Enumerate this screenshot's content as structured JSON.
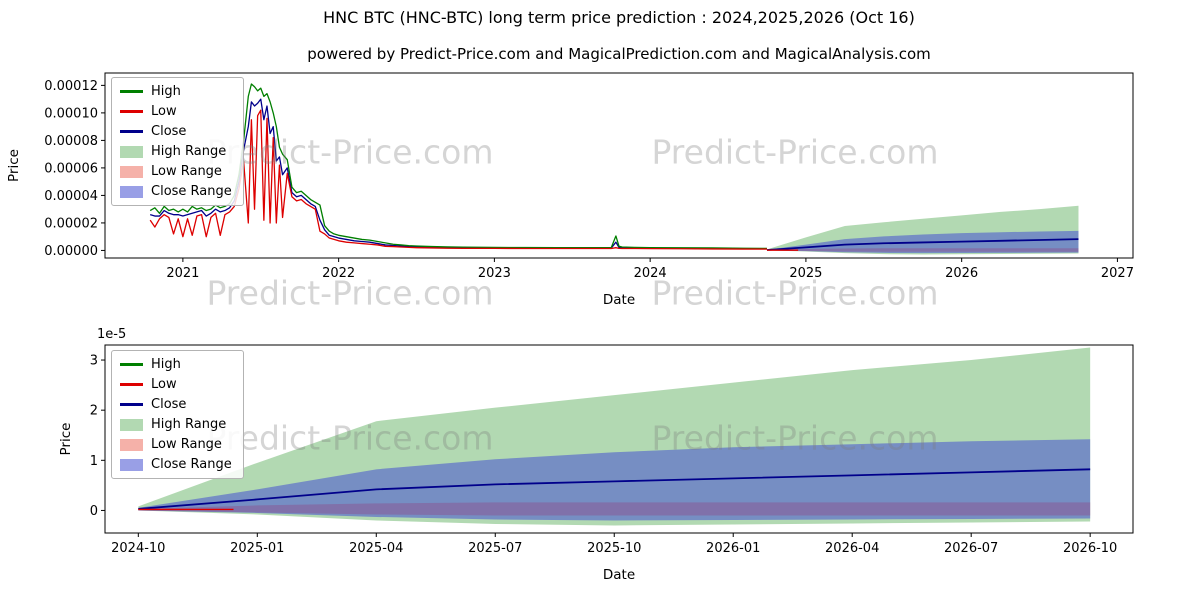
{
  "page": {
    "title": "HNC BTC (HNC-BTC) long term price prediction : 2024,2025,2026 (Oct 16)",
    "subtitle": "powered by Predict-Price.com and MagicalPrediction.com and MagicalAnalysis.com",
    "watermark": "Predict-Price.com"
  },
  "colors": {
    "high": "#007f00",
    "low": "#dd0000",
    "close": "#00008b",
    "high_range": "rgba(0,128,0,0.30)",
    "low_range": "rgba(230,60,40,0.40)",
    "close_range": "rgba(70,80,210,0.55)",
    "frame": "#000000"
  },
  "legend": [
    {
      "label": "High",
      "type": "line",
      "color_key": "high"
    },
    {
      "label": "Low",
      "type": "line",
      "color_key": "low"
    },
    {
      "label": "Close",
      "type": "line",
      "color_key": "close"
    },
    {
      "label": "High Range",
      "type": "patch",
      "color_key": "high_range"
    },
    {
      "label": "Low Range",
      "type": "patch",
      "color_key": "low_range"
    },
    {
      "label": "Close Range",
      "type": "patch",
      "color_key": "close_range"
    }
  ],
  "chart_data": [
    {
      "type": "line",
      "name": "long-term-history-and-forecast",
      "title": "",
      "xlabel": "Date",
      "ylabel": "Price",
      "grid": false,
      "legend_position": "upper left",
      "value_unit": 1e-05,
      "xlim": [
        2020.5,
        2027.1
      ],
      "ylim": [
        -0.55,
        12.9
      ],
      "x_ticks": [
        {
          "v": 2021,
          "label": "2021"
        },
        {
          "v": 2022,
          "label": "2022"
        },
        {
          "v": 2023,
          "label": "2023"
        },
        {
          "v": 2024,
          "label": "2024"
        },
        {
          "v": 2025,
          "label": "2025"
        },
        {
          "v": 2026,
          "label": "2026"
        },
        {
          "v": 2027,
          "label": "2027"
        }
      ],
      "y_ticks": [
        {
          "v": 0,
          "label": "0.00000"
        },
        {
          "v": 2,
          "label": "0.00002"
        },
        {
          "v": 4,
          "label": "0.00004"
        },
        {
          "v": 6,
          "label": "0.00006"
        },
        {
          "v": 8,
          "label": "0.00008"
        },
        {
          "v": 10,
          "label": "0.00010"
        },
        {
          "v": 12,
          "label": "0.00012"
        }
      ],
      "bands": [
        {
          "name": "High Range",
          "color_key": "high_range",
          "x": [
            2024.75,
            2025.0,
            2025.25,
            2025.5,
            2025.75,
            2026.0,
            2026.25,
            2026.5,
            2026.75
          ],
          "upper": [
            0.08,
            0.95,
            1.78,
            2.05,
            2.3,
            2.55,
            2.8,
            3.0,
            3.25
          ],
          "lower": [
            0.0,
            -0.08,
            -0.2,
            -0.27,
            -0.3,
            -0.28,
            -0.26,
            -0.24,
            -0.22
          ]
        },
        {
          "name": "Low Range",
          "color_key": "low_range",
          "x": [
            2024.75,
            2025.0,
            2025.25,
            2025.5,
            2025.75,
            2026.0,
            2026.25,
            2026.5,
            2026.75
          ],
          "upper": [
            0.03,
            0.1,
            0.14,
            0.16,
            0.16,
            0.16,
            0.16,
            0.16,
            0.16
          ],
          "lower": [
            0.0,
            -0.04,
            -0.08,
            -0.1,
            -0.1,
            -0.1,
            -0.1,
            -0.1,
            -0.1
          ]
        },
        {
          "name": "Close Range",
          "color_key": "close_range",
          "x": [
            2024.75,
            2025.0,
            2025.25,
            2025.5,
            2025.75,
            2026.0,
            2026.25,
            2026.5,
            2026.75
          ],
          "upper": [
            0.05,
            0.42,
            0.82,
            1.02,
            1.16,
            1.26,
            1.32,
            1.38,
            1.42
          ],
          "lower": [
            0.0,
            -0.05,
            -0.13,
            -0.18,
            -0.2,
            -0.19,
            -0.18,
            -0.17,
            -0.16
          ]
        }
      ],
      "series": [
        {
          "name": "Close",
          "color_key": "close",
          "width": 1.3,
          "x": [
            2020.79,
            2020.82,
            2020.85,
            2020.88,
            2020.91,
            2020.94,
            2020.97,
            2021.0,
            2021.03,
            2021.06,
            2021.09,
            2021.12,
            2021.15,
            2021.18,
            2021.21,
            2021.24,
            2021.27,
            2021.3,
            2021.33,
            2021.36,
            2021.39,
            2021.42,
            2021.44,
            2021.46,
            2021.48,
            2021.5,
            2021.52,
            2021.54,
            2021.56,
            2021.58,
            2021.6,
            2021.62,
            2021.64,
            2021.67,
            2021.7,
            2021.73,
            2021.76,
            2021.79,
            2021.82,
            2021.85,
            2021.88,
            2021.91,
            2021.94,
            2021.97,
            2022.0,
            2022.05,
            2022.1,
            2022.15,
            2022.2,
            2022.25,
            2022.3,
            2022.35,
            2022.4,
            2022.45,
            2022.5,
            2022.6,
            2022.7,
            2022.8,
            2022.9,
            2023.0,
            2023.2,
            2023.4,
            2023.6,
            2023.75,
            2023.78,
            2023.8,
            2023.82,
            2023.9,
            2024.0,
            2024.2,
            2024.4,
            2024.6,
            2024.75
          ],
          "y": [
            2.6,
            2.5,
            2.5,
            2.9,
            2.7,
            2.6,
            2.6,
            2.5,
            2.6,
            2.7,
            2.8,
            2.9,
            2.5,
            2.7,
            3.0,
            2.8,
            2.9,
            3.1,
            3.6,
            5.0,
            7.3,
            9.0,
            10.8,
            10.5,
            10.7,
            11.0,
            9.5,
            10.5,
            8.5,
            9.0,
            6.5,
            6.8,
            5.5,
            6.0,
            4.2,
            3.9,
            4.0,
            3.7,
            3.4,
            3.2,
            2.2,
            1.5,
            1.1,
            1.0,
            0.9,
            0.8,
            0.7,
            0.65,
            0.6,
            0.5,
            0.4,
            0.36,
            0.32,
            0.28,
            0.26,
            0.23,
            0.21,
            0.2,
            0.19,
            0.18,
            0.17,
            0.17,
            0.17,
            0.17,
            0.6,
            0.22,
            0.19,
            0.18,
            0.16,
            0.15,
            0.14,
            0.13,
            0.12
          ]
        },
        {
          "name": "High",
          "color_key": "high",
          "width": 1.3,
          "x": [
            2020.79,
            2020.82,
            2020.85,
            2020.88,
            2020.91,
            2020.94,
            2020.97,
            2021.0,
            2021.03,
            2021.06,
            2021.09,
            2021.12,
            2021.15,
            2021.18,
            2021.21,
            2021.24,
            2021.27,
            2021.3,
            2021.33,
            2021.36,
            2021.39,
            2021.42,
            2021.44,
            2021.46,
            2021.48,
            2021.5,
            2021.52,
            2021.54,
            2021.56,
            2021.58,
            2021.6,
            2021.62,
            2021.64,
            2021.67,
            2021.7,
            2021.73,
            2021.76,
            2021.79,
            2021.82,
            2021.85,
            2021.88,
            2021.91,
            2021.94,
            2021.97,
            2022.0,
            2022.05,
            2022.1,
            2022.15,
            2022.2,
            2022.25,
            2022.3,
            2022.35,
            2022.4,
            2022.45,
            2022.5,
            2022.6,
            2022.7,
            2022.8,
            2022.9,
            2023.0,
            2023.2,
            2023.4,
            2023.6,
            2023.75,
            2023.78,
            2023.8,
            2023.82,
            2023.9,
            2024.0,
            2024.2,
            2024.4,
            2024.6,
            2024.75
          ],
          "y": [
            2.9,
            3.1,
            2.7,
            3.2,
            2.9,
            3.0,
            2.8,
            3.0,
            2.8,
            3.2,
            3.0,
            3.1,
            2.9,
            3.0,
            3.3,
            3.1,
            3.2,
            3.4,
            4.0,
            5.5,
            8.0,
            11.2,
            12.1,
            11.9,
            11.6,
            11.8,
            11.2,
            11.4,
            10.8,
            10.0,
            9.0,
            7.5,
            7.0,
            6.6,
            4.6,
            4.2,
            4.3,
            4.0,
            3.7,
            3.5,
            3.3,
            1.8,
            1.4,
            1.2,
            1.1,
            1.0,
            0.9,
            0.8,
            0.75,
            0.65,
            0.55,
            0.45,
            0.4,
            0.35,
            0.32,
            0.28,
            0.26,
            0.24,
            0.23,
            0.22,
            0.21,
            0.2,
            0.2,
            0.2,
            1.05,
            0.3,
            0.25,
            0.22,
            0.2,
            0.19,
            0.18,
            0.16,
            0.15
          ]
        },
        {
          "name": "Low",
          "color_key": "low",
          "width": 1.3,
          "x": [
            2020.79,
            2020.82,
            2020.85,
            2020.88,
            2020.91,
            2020.94,
            2020.97,
            2021.0,
            2021.03,
            2021.06,
            2021.09,
            2021.12,
            2021.15,
            2021.18,
            2021.21,
            2021.24,
            2021.27,
            2021.3,
            2021.33,
            2021.36,
            2021.39,
            2021.42,
            2021.44,
            2021.46,
            2021.48,
            2021.5,
            2021.52,
            2021.54,
            2021.56,
            2021.58,
            2021.6,
            2021.62,
            2021.64,
            2021.67,
            2021.7,
            2021.73,
            2021.76,
            2021.79,
            2021.82,
            2021.85,
            2021.88,
            2021.91,
            2021.94,
            2021.97,
            2022.0,
            2022.05,
            2022.1,
            2022.15,
            2022.2,
            2022.25,
            2022.3,
            2022.35,
            2022.4,
            2022.45,
            2022.5,
            2022.6,
            2022.7,
            2022.8,
            2022.9,
            2023.0,
            2023.2,
            2023.4,
            2023.6,
            2023.75,
            2023.78,
            2023.8,
            2023.82,
            2023.9,
            2024.0,
            2024.2,
            2024.4,
            2024.6,
            2024.75
          ],
          "y": [
            2.2,
            1.7,
            2.3,
            2.6,
            2.4,
            1.2,
            2.3,
            1.0,
            2.3,
            1.1,
            2.5,
            2.6,
            1.0,
            2.4,
            2.7,
            1.1,
            2.6,
            2.8,
            3.2,
            4.5,
            6.5,
            2.0,
            9.5,
            3.0,
            9.8,
            10.2,
            2.2,
            9.6,
            2.0,
            8.2,
            2.0,
            6.2,
            2.4,
            5.6,
            3.9,
            3.6,
            3.7,
            3.4,
            3.2,
            3.0,
            1.4,
            1.2,
            0.9,
            0.8,
            0.7,
            0.6,
            0.55,
            0.5,
            0.45,
            0.4,
            0.3,
            0.28,
            0.25,
            0.22,
            0.2,
            0.18,
            0.16,
            0.15,
            0.15,
            0.15,
            0.14,
            0.14,
            0.14,
            0.14,
            0.2,
            0.15,
            0.14,
            0.14,
            0.13,
            0.12,
            0.11,
            0.1,
            0.1
          ]
        },
        {
          "name": "Close Forecast",
          "color_key": "close",
          "width": 1.8,
          "x": [
            2024.75,
            2025.0,
            2025.25,
            2025.5,
            2025.75,
            2026.0,
            2026.25,
            2026.5,
            2026.75
          ],
          "y": [
            0.03,
            0.22,
            0.42,
            0.52,
            0.58,
            0.64,
            0.7,
            0.76,
            0.82
          ]
        },
        {
          "name": "Low Forecast",
          "color_key": "low",
          "width": 1.4,
          "x": [
            2024.75,
            2024.95
          ],
          "y": [
            0.02,
            0.02
          ]
        }
      ]
    },
    {
      "type": "line",
      "name": "forecast-detail",
      "title": "",
      "xlabel": "Date",
      "ylabel": "Price",
      "grid": false,
      "legend_position": "upper left",
      "offset_text": "1e-5",
      "value_unit": 1e-05,
      "xlim": [
        2024.68,
        2026.84
      ],
      "ylim": [
        -0.45,
        3.3
      ],
      "x_ticks": [
        {
          "v": 2024.75,
          "label": "2024-10"
        },
        {
          "v": 2025.0,
          "label": "2025-01"
        },
        {
          "v": 2025.25,
          "label": "2025-04"
        },
        {
          "v": 2025.5,
          "label": "2025-07"
        },
        {
          "v": 2025.75,
          "label": "2025-10"
        },
        {
          "v": 2026.0,
          "label": "2026-01"
        },
        {
          "v": 2026.25,
          "label": "2026-04"
        },
        {
          "v": 2026.5,
          "label": "2026-07"
        },
        {
          "v": 2026.75,
          "label": "2026-10"
        }
      ],
      "y_ticks": [
        {
          "v": 0,
          "label": "0"
        },
        {
          "v": 1,
          "label": "1"
        },
        {
          "v": 2,
          "label": "2"
        },
        {
          "v": 3,
          "label": "3"
        }
      ],
      "bands": [
        {
          "name": "High Range",
          "color_key": "high_range",
          "x": [
            2024.75,
            2025.0,
            2025.25,
            2025.5,
            2025.75,
            2026.0,
            2026.25,
            2026.5,
            2026.75
          ],
          "upper": [
            0.08,
            0.95,
            1.78,
            2.05,
            2.3,
            2.55,
            2.8,
            3.0,
            3.25
          ],
          "lower": [
            0.0,
            -0.08,
            -0.2,
            -0.27,
            -0.3,
            -0.28,
            -0.26,
            -0.24,
            -0.22
          ]
        },
        {
          "name": "Low Range",
          "color_key": "low_range",
          "x": [
            2024.75,
            2025.0,
            2025.25,
            2025.5,
            2025.75,
            2026.0,
            2026.25,
            2026.5,
            2026.75
          ],
          "upper": [
            0.03,
            0.1,
            0.14,
            0.16,
            0.16,
            0.16,
            0.16,
            0.16,
            0.16
          ],
          "lower": [
            0.0,
            -0.04,
            -0.08,
            -0.1,
            -0.1,
            -0.1,
            -0.1,
            -0.1,
            -0.1
          ]
        },
        {
          "name": "Close Range",
          "color_key": "close_range",
          "x": [
            2024.75,
            2025.0,
            2025.25,
            2025.5,
            2025.75,
            2026.0,
            2026.25,
            2026.5,
            2026.75
          ],
          "upper": [
            0.05,
            0.42,
            0.82,
            1.02,
            1.16,
            1.26,
            1.32,
            1.38,
            1.42
          ],
          "lower": [
            0.0,
            -0.05,
            -0.13,
            -0.18,
            -0.2,
            -0.19,
            -0.18,
            -0.17,
            -0.16
          ]
        }
      ],
      "series": [
        {
          "name": "Close Forecast",
          "color_key": "close",
          "width": 1.8,
          "x": [
            2024.75,
            2025.0,
            2025.25,
            2025.5,
            2025.75,
            2026.0,
            2026.25,
            2026.5,
            2026.75
          ],
          "y": [
            0.03,
            0.22,
            0.42,
            0.52,
            0.58,
            0.64,
            0.7,
            0.76,
            0.82
          ]
        },
        {
          "name": "Low Forecast",
          "color_key": "low",
          "width": 1.4,
          "x": [
            2024.75,
            2024.95
          ],
          "y": [
            0.02,
            0.02
          ]
        }
      ]
    }
  ]
}
